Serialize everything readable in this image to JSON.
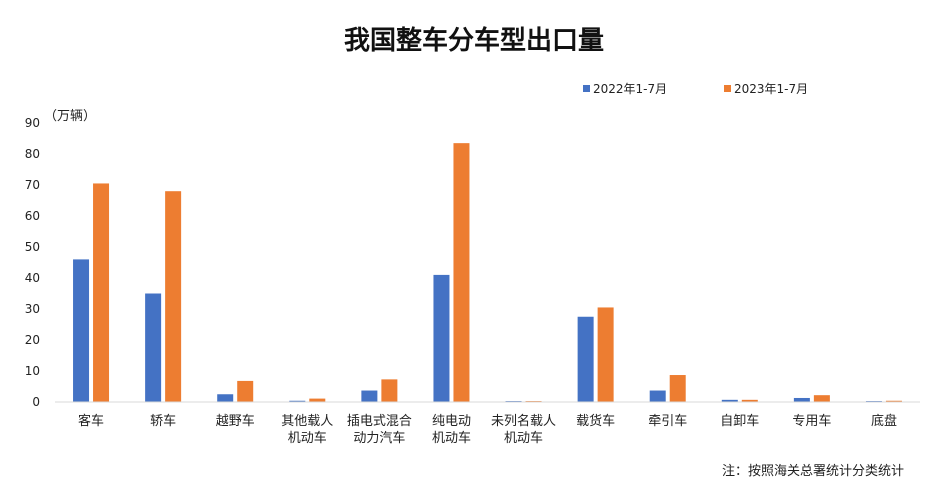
{
  "chart_data": {
    "type": "bar",
    "title": "我国整车分车型出口量",
    "ylabel": "（万辆）",
    "ylim": [
      0,
      90
    ],
    "yticks": [
      0,
      10,
      20,
      30,
      40,
      50,
      60,
      70,
      80,
      90
    ],
    "categories": [
      [
        "客车"
      ],
      [
        "轿车"
      ],
      [
        "越野车"
      ],
      [
        "其他载人",
        "机动车"
      ],
      [
        "插电式混合",
        "动力汽车"
      ],
      [
        "纯电动",
        "机动车"
      ],
      [
        "未列名载人",
        "机动车"
      ],
      [
        "载货车"
      ],
      [
        "牵引车"
      ],
      [
        "自卸车"
      ],
      [
        "专用车"
      ],
      [
        "底盘"
      ]
    ],
    "series": [
      {
        "name": "2022年1-7月",
        "color": "#4472C4",
        "values": [
          46,
          35,
          2.5,
          0.4,
          3.7,
          41,
          0.3,
          27.5,
          3.7,
          0.7,
          1.3,
          0.3
        ]
      },
      {
        "name": "2023年1-7月",
        "color": "#ED7D31",
        "values": [
          70.5,
          68,
          6.8,
          1.1,
          7.3,
          83.5,
          0.3,
          30.5,
          8.7,
          0.7,
          2.2,
          0.4
        ]
      }
    ],
    "legend_position": "top-right",
    "grid": false,
    "note": "注：按照海关总署统计分类统计"
  }
}
